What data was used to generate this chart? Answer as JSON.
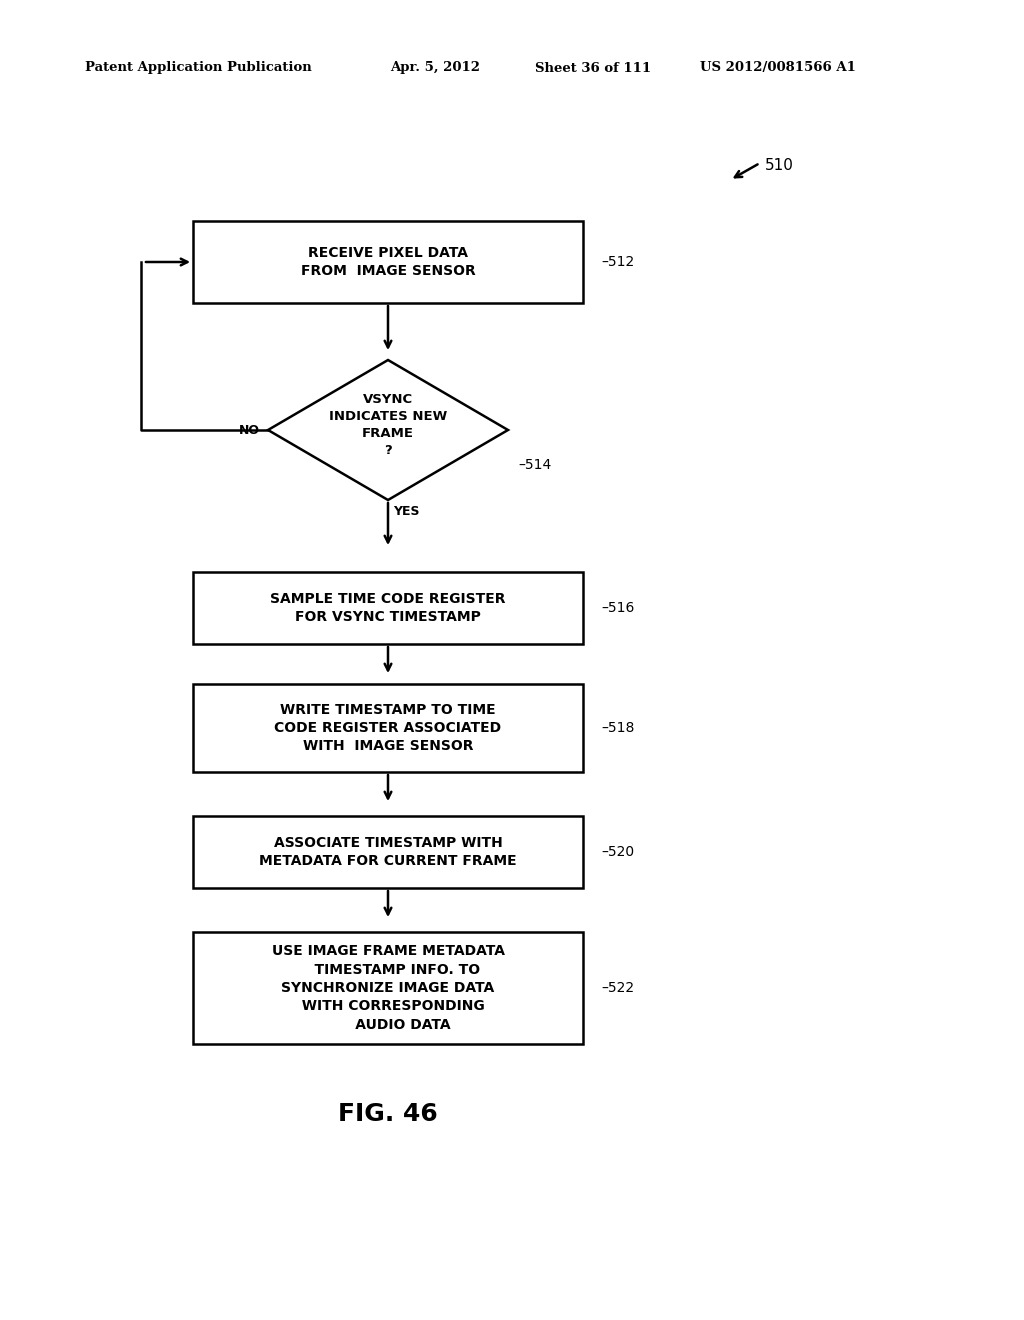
{
  "bg_color": "#ffffff",
  "header_text": "Patent Application Publication",
  "header_date": "Apr. 5, 2012",
  "header_sheet": "Sheet 36 of 111",
  "header_patent": "US 2012/0081566 A1",
  "figure_label": "FIG. 46",
  "diagram_label": "510",
  "box512_label": "RECEIVE PIXEL DATA\nFROM  IMAGE SENSOR",
  "box512_ref": "512",
  "diamond514_label": "VSYNC\nINDICATES NEW\nFRAME\n?",
  "diamond514_ref": "514",
  "box516_label": "SAMPLE TIME CODE REGISTER\nFOR VSYNC TIMESTAMP",
  "box516_ref": "516",
  "box518_label": "WRITE TIMESTAMP TO TIME\nCODE REGISTER ASSOCIATED\nWITH  IMAGE SENSOR",
  "box518_ref": "518",
  "box520_label": "ASSOCIATE TIMESTAMP WITH\nMETADATA FOR CURRENT FRAME",
  "box520_ref": "520",
  "box522_label": "USE IMAGE FRAME METADATA\n    TIMESTAMP INFO. TO\nSYNCHRONIZE IMAGE DATA\n  WITH CORRESPONDING\n      AUDIO DATA",
  "box522_ref": "522",
  "yes_label": "YES",
  "no_label": "NO"
}
